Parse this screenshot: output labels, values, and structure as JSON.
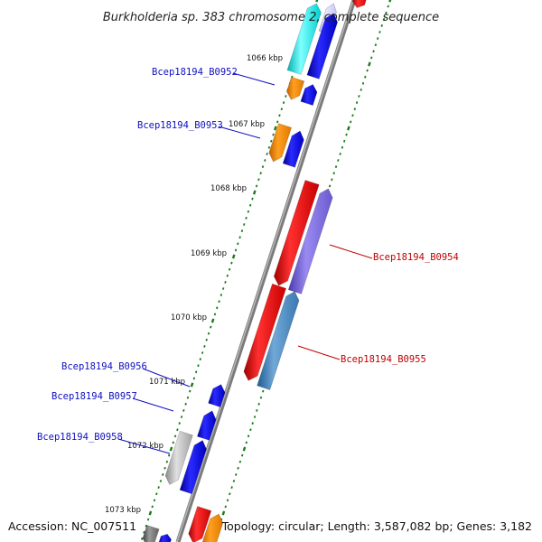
{
  "title": "Burkholderia sp. 383 chromosome 2, complete sequence",
  "footer": {
    "accession": "Accession: NC_007511",
    "topology": "Topology: circular; Length: 3,587,082 bp; Genes: 3,182"
  },
  "ruler_labels": [
    "1066 kbp",
    "1067 kbp",
    "1068 kbp",
    "1069 kbp",
    "1070 kbp",
    "1071 kbp",
    "1072 kbp",
    "1073 kbp"
  ],
  "gene_labels": [
    {
      "text": "Bcep18194_B0952",
      "color": "blue"
    },
    {
      "text": "Bcep18194_B0953",
      "color": "blue"
    },
    {
      "text": "Bcep18194_B0954",
      "color": "red"
    },
    {
      "text": "Bcep18194_B0955",
      "color": "red"
    },
    {
      "text": "Bcep18194_B0956",
      "color": "blue"
    },
    {
      "text": "Bcep18194_B0957",
      "color": "blue"
    },
    {
      "text": "Bcep18194_B0958",
      "color": "blue"
    }
  ],
  "colors": {
    "ruler_tick": "#1a7a1a",
    "backbone": "#8a8a8a",
    "label_blue": "#1010c0",
    "label_red": "#c00000",
    "gene_red": "#ee0000",
    "gene_blue": "#1010ee",
    "gene_orange": "#ff9000",
    "gene_cyan": "#00e8e8",
    "gene_purple": "#7a6ad8",
    "gene_steel": "#4a88c0",
    "gene_gray": "#b8b8b8",
    "gene_darkgray": "#707070"
  }
}
